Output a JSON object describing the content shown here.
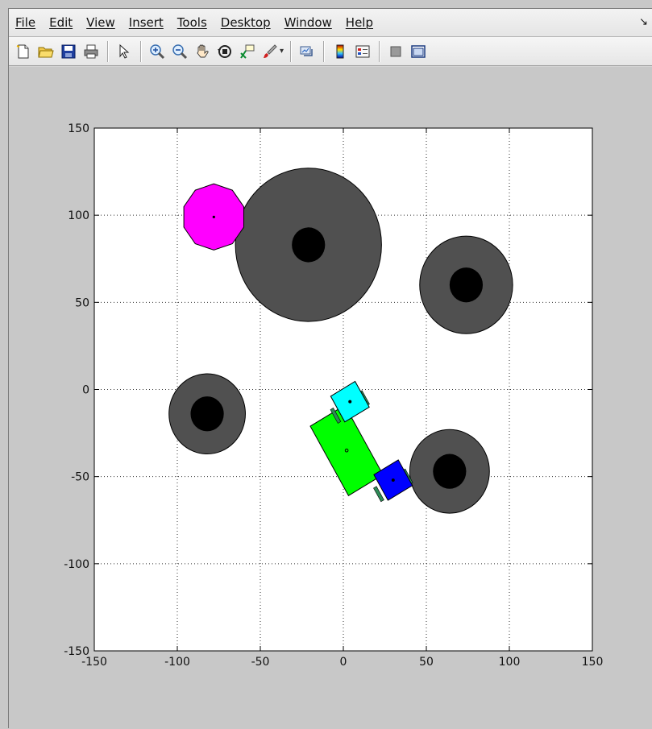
{
  "menu": {
    "items": [
      "File",
      "Edit",
      "View",
      "Insert",
      "Tools",
      "Desktop",
      "Window",
      "Help"
    ],
    "dock_arrow": "↘"
  },
  "toolbar": {
    "buttons": [
      "new-figure-icon",
      "open-file-icon",
      "save-icon",
      "print-icon",
      "pointer-icon",
      "zoom-in-icon",
      "zoom-out-icon",
      "pan-hand-icon",
      "rotate-3d-icon",
      "data-cursor-icon",
      "brush-icon",
      "link-plot-icon",
      "colorbar-icon",
      "legend-icon",
      "hide-plot-tools-icon",
      "show-plot-tools-icon"
    ]
  },
  "chart_data": {
    "type": "scatter",
    "title": "",
    "xlabel": "",
    "ylabel": "",
    "xlim": [
      -150,
      150
    ],
    "ylim": [
      -150,
      150
    ],
    "xticks": [
      "-150",
      "-100",
      "-50",
      "0",
      "50",
      "100",
      "150"
    ],
    "yticks": [
      "-150",
      "-100",
      "-50",
      "0",
      "50",
      "100",
      "150"
    ],
    "grid": true,
    "colors": {
      "obstacle_outer": "#505050",
      "obstacle_inner": "#000000",
      "target": "#ff00ff",
      "body": "#00ff00",
      "head": "#00ffff",
      "tail": "#0000ff",
      "wheel": "#2e8b57"
    },
    "obstacles": [
      {
        "cx": -21,
        "cy": 83,
        "r_outer": 44,
        "r_inner": 10
      },
      {
        "cx": 74,
        "cy": 60,
        "r_outer": 28,
        "r_inner": 10
      },
      {
        "cx": -82,
        "cy": -14,
        "r_outer": 23,
        "r_inner": 10
      },
      {
        "cx": 64,
        "cy": -47,
        "r_outer": 24,
        "r_inner": 10
      }
    ],
    "target": {
      "cx": -78,
      "cy": 99,
      "r": 19
    },
    "robot": {
      "body": {
        "cx": 2,
        "cy": -35,
        "w": 24,
        "h": 46,
        "angle": 30
      },
      "head": {
        "cx": 4,
        "cy": -7,
        "size": 17,
        "angle": 30
      },
      "tail": {
        "cx": 30,
        "cy": -52,
        "size": 17,
        "angle": 30
      }
    }
  }
}
